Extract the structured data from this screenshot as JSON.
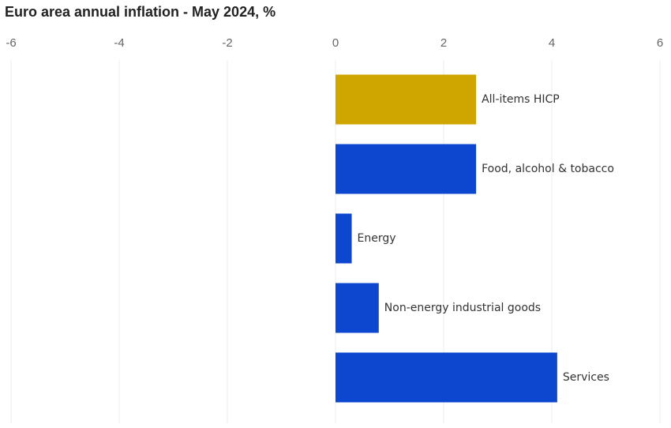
{
  "chart_data": {
    "type": "hbar",
    "title": "Euro area annual inflation - May 2024, %",
    "categories": [
      "All-items HICP",
      "Food, alcohol & tobacco",
      "Energy",
      "Non-energy industrial goods",
      "Services"
    ],
    "values": [
      2.6,
      2.6,
      0.3,
      0.8,
      4.1
    ],
    "colors": [
      "#cfa500",
      "#0e47cf",
      "#0e47cf",
      "#0e47cf",
      "#0e47cf"
    ],
    "xlim": [
      -6,
      6
    ],
    "xticks": [
      -6,
      -4,
      -2,
      0,
      2,
      4,
      6
    ],
    "grid": true
  }
}
